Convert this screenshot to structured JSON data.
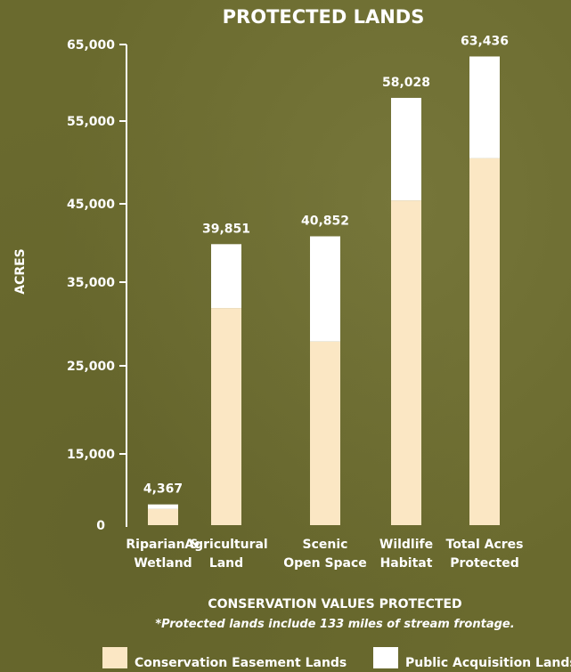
{
  "colors": {
    "background": "#6a6a2e",
    "conservation_easement": "#fbe7c4",
    "public_acquisition": "#ffffff",
    "text": "#ffffff"
  },
  "chart_data": {
    "type": "bar",
    "stacked": true,
    "title": "PROTECTED LANDS",
    "ylabel": "ACRES",
    "xlabel": "CONSERVATION VALUES PROTECTED",
    "note": "*Protected lands include 133 miles of stream frontage.",
    "ylim": [
      0,
      65000
    ],
    "yticks": [
      0,
      15000,
      25000,
      35000,
      45000,
      55000,
      65000
    ],
    "ytick_labels": [
      "0",
      "15,000",
      "25,000",
      "35,000",
      "45,000",
      "55,000",
      "65,000"
    ],
    "categories": [
      [
        "Riparian &",
        "Wetland"
      ],
      [
        "Agricultural",
        "Land"
      ],
      [
        "Scenic",
        "Open Space"
      ],
      [
        "Wildlife",
        "Habitat"
      ],
      [
        "Total Acres",
        "Protected"
      ]
    ],
    "series": [
      {
        "name": "Conservation Easement Lands",
        "color": "#fbe7c4",
        "values": [
          3400,
          31900,
          27900,
          45400,
          50500
        ]
      },
      {
        "name": "Public Acquisition Lands",
        "color": "#ffffff",
        "values": [
          967,
          7951,
          12952,
          12628,
          12936
        ]
      }
    ],
    "totals": [
      4367,
      39851,
      40852,
      58028,
      63436
    ],
    "total_labels": [
      "4,367",
      "39,851",
      "40,852",
      "58,028",
      "63,436"
    ],
    "legend_position": "bottom"
  }
}
